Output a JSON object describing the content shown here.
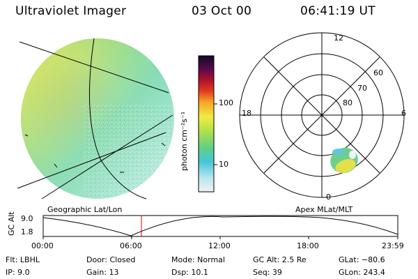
{
  "header": {
    "title": "Ultraviolet Imager",
    "date": "03 Oct 00",
    "time": "06:41:19 UT"
  },
  "colorbar": {
    "unit_label": "photon cm⁻²s⁻¹",
    "ticks": [
      "100",
      "10"
    ]
  },
  "polar": {
    "mlt_labels": [
      "12",
      "18",
      "6",
      "0"
    ],
    "lat_labels": [
      "60",
      "70",
      "80"
    ]
  },
  "image_labels": {
    "left": "Geographic Lat/Lon",
    "right": "Apex MLat/MLT"
  },
  "altitude_plot": {
    "axis_label": "GC Alt",
    "y_ticks": [
      "9.0",
      "1.8"
    ],
    "x_ticks": [
      "00:00",
      "06:00",
      "12:00",
      "18:00",
      "23:59"
    ],
    "marker_color": "#cc0000"
  },
  "info": {
    "row1": {
      "filter": "Flt: LBHL",
      "door": "Door: Closed",
      "mode": "Mode: Normal",
      "gc_alt": "GC Alt: 2.5 Re",
      "glat": "GLat: −80.6"
    },
    "row2": {
      "ip": "IP:  9.0",
      "gain": "Gain: 13",
      "dsp": "Dsp:   10.1",
      "seq": "Seq: 39",
      "glon": "GLon: 243.4"
    }
  }
}
